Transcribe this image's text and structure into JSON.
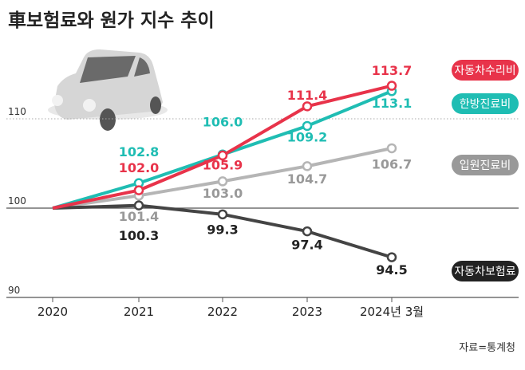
{
  "title": "車보험료와 원가 지수 추이",
  "source": "자료=통계청",
  "chart_data": {
    "type": "line",
    "title": "車보험료와 원가 지수 추이",
    "categories": [
      "2020",
      "2021",
      "2022",
      "2023",
      "2024년 3월"
    ],
    "ylim": [
      90,
      115
    ],
    "yticks": [
      "90",
      "100",
      "110"
    ],
    "grid": true,
    "legend": "right",
    "series": [
      {
        "name": "자동차수리비",
        "color": "#e8334a",
        "values": [
          100,
          102.0,
          105.9,
          111.4,
          113.7
        ],
        "labels": [
          "",
          "102.0",
          "105.9",
          "111.4",
          "113.7"
        ]
      },
      {
        "name": "한방진료비",
        "color": "#1fbdb3",
        "values": [
          100,
          102.8,
          106.0,
          109.2,
          113.1
        ],
        "labels": [
          "",
          "102.8",
          "106.0",
          "109.2",
          "113.1"
        ]
      },
      {
        "name": "입원진료비",
        "color": "#b5b5b5",
        "values": [
          100,
          101.4,
          103.0,
          104.7,
          106.7
        ],
        "labels": [
          "",
          "101.4",
          "103.0",
          "104.7",
          "106.7"
        ]
      },
      {
        "name": "자동차보험료",
        "color": "#444444",
        "values": [
          100,
          100.3,
          99.3,
          97.4,
          94.5
        ],
        "labels": [
          "",
          "100.3",
          "99.3",
          "97.4",
          "94.5"
        ]
      }
    ]
  }
}
